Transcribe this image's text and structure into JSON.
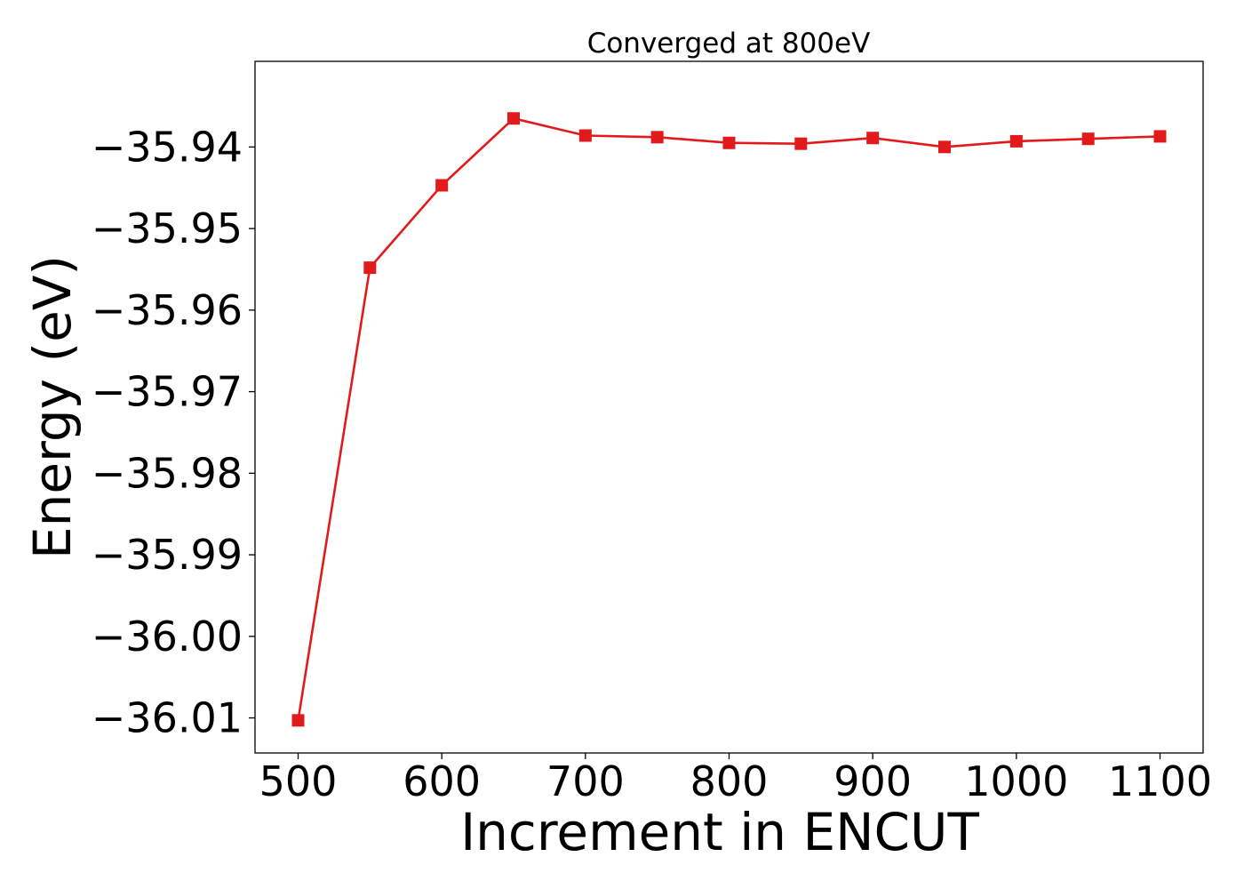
{
  "chart_data": {
    "type": "line",
    "title": "Converged at 800eV",
    "xlabel": "Increment in ENCUT",
    "ylabel": "Energy (eV)",
    "x": [
      500,
      550,
      600,
      650,
      700,
      750,
      800,
      850,
      900,
      950,
      1000,
      1050,
      1100
    ],
    "series": [
      {
        "values": [
          -36.0103,
          -35.9548,
          -35.9447,
          -35.9365,
          -35.9386,
          -35.9388,
          -35.9395,
          -35.9396,
          -35.9389,
          -35.94,
          -35.9393,
          -35.939,
          -35.9387
        ],
        "color": "#e31a1c",
        "marker": "square"
      }
    ],
    "xlim": [
      470,
      1130
    ],
    "ylim": [
      -36.0143,
      -35.9295
    ],
    "xticks": [
      500,
      600,
      700,
      800,
      900,
      1000,
      1100
    ],
    "xtick_labels": [
      "500",
      "600",
      "700",
      "800",
      "900",
      "1000",
      "1100"
    ],
    "yticks": [
      -36.01,
      -36.0,
      -35.99,
      -35.98,
      -35.97,
      -35.96,
      -35.95,
      -35.94
    ],
    "ytick_labels": [
      "−36.01",
      "−36.00",
      "−35.99",
      "−35.98",
      "−35.97",
      "−35.96",
      "−35.95",
      "−35.94"
    ],
    "grid": false,
    "legend": "none"
  }
}
